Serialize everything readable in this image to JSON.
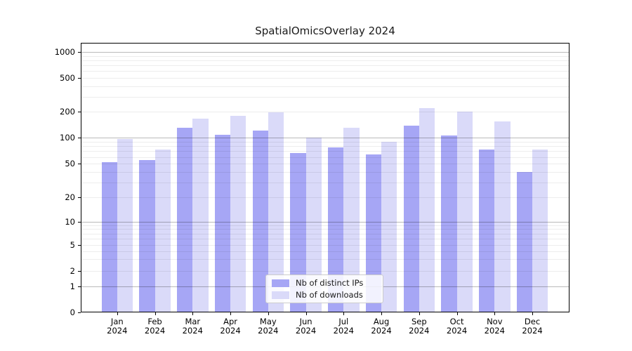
{
  "chart_data": {
    "type": "bar",
    "title": "SpatialOmicsOverlay 2024",
    "categories": [
      "Jan",
      "Feb",
      "Mar",
      "Apr",
      "May",
      "Jun",
      "Jul",
      "Aug",
      "Sep",
      "Oct",
      "Nov",
      "Dec"
    ],
    "x_tick_year": "2024",
    "series": [
      {
        "name": "Nb of distinct IPs",
        "color": "#a6a6f5",
        "values": [
          52,
          55,
          131,
          109,
          121,
          66,
          77,
          64,
          138,
          106,
          73,
          40
        ]
      },
      {
        "name": "Nb of downloads",
        "color": "#dadaf9",
        "values": [
          97,
          73,
          167,
          181,
          199,
          100,
          130,
          90,
          222,
          200,
          156,
          73
        ]
      }
    ],
    "yscale": "symlog",
    "y_ticks": [
      0,
      1,
      2,
      5,
      10,
      20,
      50,
      100,
      200,
      500,
      1000
    ],
    "ylim": [
      0,
      1270
    ],
    "grid": true,
    "legend_position": "lower-center-inside"
  }
}
